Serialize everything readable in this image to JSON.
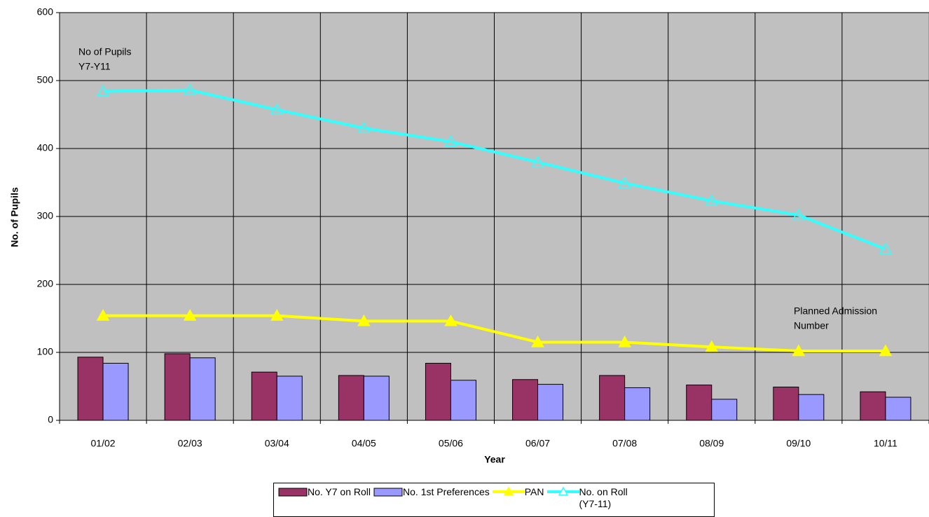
{
  "chart_data": {
    "type": "bar",
    "y_label": "No. of Pupils",
    "x_label": "Year",
    "categories": [
      "01/02",
      "02/03",
      "03/04",
      "04/05",
      "05/06",
      "06/07",
      "07/08",
      "08/09",
      "09/10",
      "10/11"
    ],
    "series": [
      {
        "name": "No. Y7 on Roll",
        "type": "bar",
        "color": "#993366",
        "values": [
          93,
          98,
          71,
          66,
          84,
          60,
          66,
          52,
          49,
          42
        ]
      },
      {
        "name": "No. 1st Preferences",
        "type": "bar",
        "color": "#9999ff",
        "values": [
          84,
          92,
          65,
          65,
          59,
          53,
          48,
          31,
          38,
          34
        ]
      },
      {
        "name": "PAN",
        "type": "line",
        "color": "#ffff00",
        "values": [
          154,
          154,
          154,
          146,
          146,
          115,
          115,
          108,
          102,
          102
        ]
      },
      {
        "name": "No. on Roll (Y7-11)",
        "type": "line",
        "color": "#33ffff",
        "values": [
          484,
          486,
          457,
          430,
          410,
          380,
          349,
          323,
          302,
          252
        ]
      }
    ],
    "annotations": [
      [
        "No of Pupils",
        "Y7-Y11"
      ],
      [
        "Planned Admission",
        "Number"
      ]
    ],
    "ylim": [
      0,
      600
    ],
    "yticks": [
      0,
      100,
      200,
      300,
      400,
      500,
      600
    ],
    "grid": true,
    "legend": "bottom"
  }
}
